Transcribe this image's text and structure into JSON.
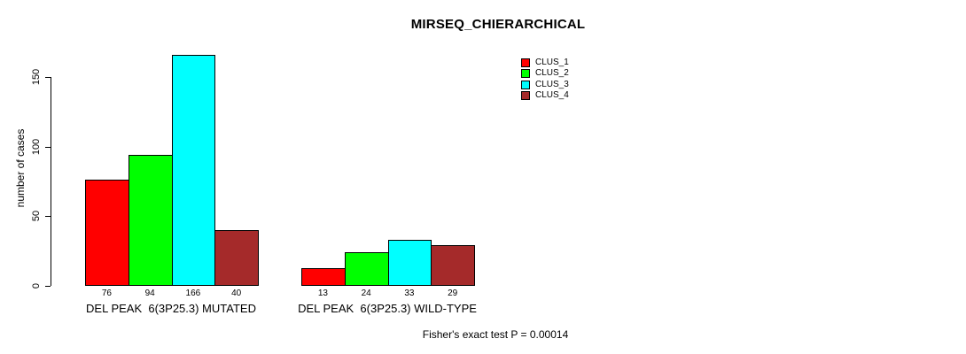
{
  "chart_data": {
    "type": "bar",
    "title": "MIRSEQ_CHIERARCHICAL",
    "ylabel": "number of cases",
    "xlabel": "",
    "categories": [
      "DEL PEAK  6(3P25.3) MUTATED",
      "DEL PEAK  6(3P25.3) WILD-TYPE"
    ],
    "series": [
      {
        "name": "CLUS_1",
        "color": "#FF0000",
        "values": [
          76,
          13
        ]
      },
      {
        "name": "CLUS_2",
        "color": "#00FF00",
        "values": [
          94,
          24
        ]
      },
      {
        "name": "CLUS_3",
        "color": "#00FFFF",
        "values": [
          166,
          33
        ]
      },
      {
        "name": "CLUS_4",
        "color": "#A52A2A",
        "values": [
          40,
          29
        ]
      }
    ],
    "bar_value_labels": [
      [
        "76",
        "94",
        "166",
        "40"
      ],
      [
        "13",
        "24",
        "33",
        "29"
      ]
    ],
    "yticks": [
      "0",
      "50",
      "100",
      "150"
    ],
    "ylim": [
      0,
      150
    ],
    "grid": false,
    "legend_position": "top-right",
    "annotation": "Fisher's exact test P = 0.00014"
  },
  "colors": {
    "background": "#FFFFFF",
    "bar_border": "#000000",
    "text": "#000000"
  }
}
